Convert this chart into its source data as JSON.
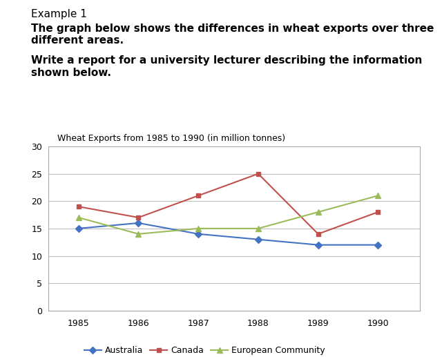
{
  "title": "Wheat Exports from 1985 to 1990 (in million tonnes)",
  "years": [
    1985,
    1986,
    1987,
    1988,
    1989,
    1990
  ],
  "australia": [
    15,
    16,
    14,
    13,
    12,
    12
  ],
  "canada": [
    19,
    17,
    21,
    25,
    14,
    18
  ],
  "european_community": [
    17,
    14,
    15,
    15,
    18,
    21
  ],
  "australia_color": "#4472C4",
  "canada_color": "#C0504D",
  "ec_color": "#9BBB59",
  "ylim": [
    0,
    30
  ],
  "yticks": [
    0,
    5,
    10,
    15,
    20,
    25,
    30
  ],
  "header_line1": "Example 1",
  "header_line2": "The graph below shows the differences in wheat exports over three\ndifferent areas.",
  "header_line3": "Write a report for a university lecturer describing the information\nshown below.",
  "bg_color": "#FFFFFF",
  "plot_bg_color": "#FFFFFF",
  "grid_color": "#BEBEBE",
  "border_color": "#AAAAAA"
}
